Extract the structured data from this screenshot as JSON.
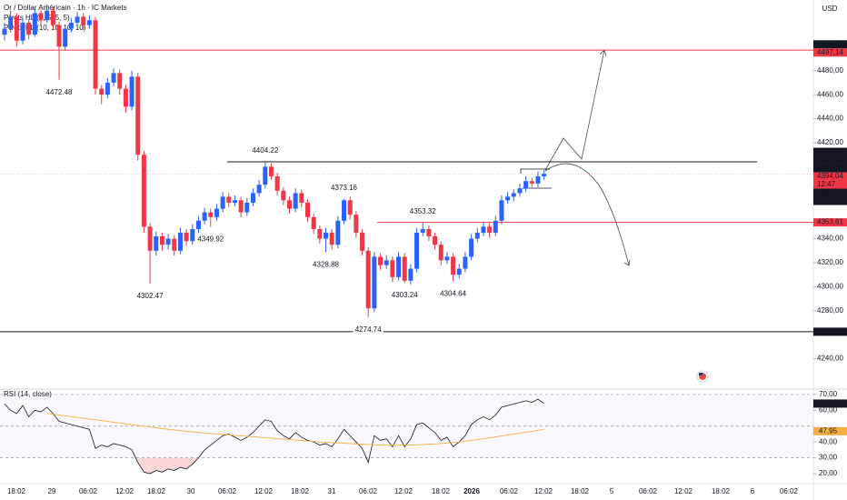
{
  "chart_data": [
    {
      "type": "candlestick",
      "title": "Or / Dollar Américain · 1h · IC Markets",
      "indicator_labels": [
        "Pivots HL (5, 5, 5, 5)",
        "Pivots HL (10, 10, 10, 10)"
      ],
      "currency": "USD",
      "colors": {
        "up": "#2962ff",
        "down": "#f23645"
      },
      "ylim": [
        4214.7,
        4538.9
      ],
      "yticks": [
        {
          "value": 4240,
          "label": "4240,00"
        },
        {
          "value": 4280,
          "label": "4280,00"
        },
        {
          "value": 4300,
          "label": "4300,00"
        },
        {
          "value": 4320,
          "label": "4320,00"
        },
        {
          "value": 4340,
          "label": "4340,00"
        },
        {
          "value": 4420,
          "label": "4420,00"
        },
        {
          "value": 4440,
          "label": "4440,00"
        },
        {
          "value": 4460,
          "label": "4460,00"
        },
        {
          "value": 4480,
          "label": "4480,00"
        }
      ],
      "categories": [
        "18:02",
        "29",
        "06:02",
        "12:02",
        "18:02",
        "30",
        "06:02",
        "12:02",
        "18:02",
        "31",
        "06:02",
        "12:02",
        "18:02",
        "2026",
        "06:02",
        "12:02",
        "18:02",
        "5",
        "06:02",
        "12:02",
        "18:02",
        "6",
        "06:02"
      ],
      "candles": [
        [
          4510,
          4520,
          4505,
          4515
        ],
        [
          4515,
          4530,
          4512,
          4525
        ],
        [
          4525,
          4528,
          4500,
          4505
        ],
        [
          4505,
          4524,
          4502,
          4520
        ],
        [
          4520,
          4523,
          4506,
          4510
        ],
        [
          4510,
          4532,
          4508,
          4528
        ],
        [
          4528,
          4531,
          4518,
          4522
        ],
        [
          4522,
          4535,
          4520,
          4530
        ],
        [
          4530,
          4533,
          4514,
          4518
        ],
        [
          4518,
          4521,
          4472.48,
          4500
        ],
        [
          4500,
          4518,
          4497,
          4515
        ],
        [
          4515,
          4524,
          4512,
          4520
        ],
        [
          4520,
          4529,
          4517,
          4525
        ],
        [
          4525,
          4528,
          4514,
          4518
        ],
        [
          4518,
          4526,
          4515,
          4522
        ],
        [
          4522,
          4525,
          4460,
          4465
        ],
        [
          4465,
          4468,
          4452,
          4460
        ],
        [
          4460,
          4474,
          4457,
          4470
        ],
        [
          4470,
          4482,
          4467,
          4478
        ],
        [
          4478,
          4481,
          4460,
          4465
        ],
        [
          4465,
          4468,
          4445,
          4450
        ],
        [
          4450,
          4480,
          4447,
          4475
        ],
        [
          4475,
          4478,
          4405,
          4410
        ],
        [
          4410,
          4413,
          4345,
          4350
        ],
        [
          4350,
          4353,
          4302.47,
          4330
        ],
        [
          4330,
          4346,
          4326,
          4342
        ],
        [
          4342,
          4345,
          4330,
          4335
        ],
        [
          4335,
          4344,
          4331,
          4340
        ],
        [
          4340,
          4343,
          4326,
          4330
        ],
        [
          4330,
          4349,
          4327,
          4345
        ],
        [
          4345,
          4348,
          4334,
          4338
        ],
        [
          4338,
          4352,
          4335,
          4348
        ],
        [
          4348,
          4359,
          4345,
          4355
        ],
        [
          4355,
          4366,
          4352,
          4362
        ],
        [
          4362,
          4365,
          4349.92,
          4358
        ],
        [
          4358,
          4369,
          4355,
          4365
        ],
        [
          4365,
          4379,
          4362,
          4375
        ],
        [
          4375,
          4378,
          4366,
          4370
        ],
        [
          4370,
          4376,
          4367,
          4372
        ],
        [
          4372,
          4375,
          4358,
          4362
        ],
        [
          4362,
          4374,
          4359,
          4370
        ],
        [
          4370,
          4382,
          4367,
          4378
        ],
        [
          4378,
          4389,
          4375,
          4385
        ],
        [
          4385,
          4404.22,
          4382,
          4400
        ],
        [
          4400,
          4403,
          4389,
          4392
        ],
        [
          4392,
          4395,
          4376,
          4380
        ],
        [
          4380,
          4383,
          4368,
          4372
        ],
        [
          4372,
          4375,
          4361,
          4365
        ],
        [
          4365,
          4382,
          4362,
          4378
        ],
        [
          4378,
          4381,
          4366,
          4370
        ],
        [
          4370,
          4373,
          4354,
          4358
        ],
        [
          4358,
          4361,
          4344,
          4348
        ],
        [
          4348,
          4351,
          4336,
          4340
        ],
        [
          4340,
          4349,
          4328.88,
          4345
        ],
        [
          4345,
          4348,
          4331,
          4335
        ],
        [
          4335,
          4359,
          4332,
          4355
        ],
        [
          4355,
          4373.16,
          4352,
          4372
        ],
        [
          4372,
          4375,
          4356,
          4360
        ],
        [
          4360,
          4363,
          4341,
          4345
        ],
        [
          4345,
          4348,
          4326,
          4330
        ],
        [
          4330,
          4333,
          4274.74,
          4282
        ],
        [
          4282,
          4329,
          4279,
          4325
        ],
        [
          4325,
          4328,
          4314,
          4318
        ],
        [
          4318,
          4326,
          4315,
          4322
        ],
        [
          4322,
          4325,
          4304,
          4308
        ],
        [
          4308,
          4329,
          4305,
          4325
        ],
        [
          4325,
          4328,
          4303.24,
          4305
        ],
        [
          4305,
          4319,
          4302,
          4315
        ],
        [
          4315,
          4349,
          4312,
          4345
        ],
        [
          4345,
          4353.32,
          4342,
          4348
        ],
        [
          4348,
          4351,
          4338,
          4342
        ],
        [
          4342,
          4345,
          4331,
          4335
        ],
        [
          4335,
          4338,
          4318,
          4322
        ],
        [
          4322,
          4329,
          4319,
          4325
        ],
        [
          4325,
          4328,
          4304.64,
          4310
        ],
        [
          4310,
          4319,
          4307,
          4315
        ],
        [
          4315,
          4329,
          4312,
          4325
        ],
        [
          4325,
          4344,
          4322,
          4340
        ],
        [
          4340,
          4349,
          4337,
          4345
        ],
        [
          4345,
          4354,
          4342,
          4350
        ],
        [
          4350,
          4353,
          4341,
          4345
        ],
        [
          4345,
          4359,
          4342,
          4355
        ],
        [
          4355,
          4376,
          4352,
          4372
        ],
        [
          4372,
          4379,
          4369,
          4375
        ],
        [
          4375,
          4381,
          4371,
          4378
        ],
        [
          4378,
          4386,
          4375,
          4382
        ],
        [
          4382,
          4392,
          4379,
          4388
        ],
        [
          4388,
          4391,
          4383,
          4386
        ],
        [
          4386,
          4396,
          4383,
          4392
        ],
        [
          4392,
          4397.39,
          4389,
          4394.04
        ]
      ],
      "pivot_labels": [
        4472.48,
        4404.22,
        4302.47,
        4349.92,
        4373.16,
        4328.88,
        4353.32,
        4274.74,
        4303.24,
        4304.64
      ],
      "price_levels": [
        {
          "value": 4499.97,
          "label": "4499,97",
          "color": "#131722",
          "line": false
        },
        {
          "value": 4497.14,
          "label": "4497,14",
          "color": "#f23645",
          "line": true,
          "line_style": "solid"
        },
        {
          "value": 4404.11,
          "label": "4404,11",
          "color": "#131722",
          "line": true,
          "line_style": "solid"
        },
        {
          "value": 4397.46,
          "label": "4397,46",
          "color": "#131722",
          "line": false
        },
        {
          "value": 4397.39,
          "label": "4397,39",
          "color": "#131722",
          "line": false
        },
        {
          "value": 4394.04,
          "label": "4394,04",
          "color": "#f23645",
          "line": true,
          "line_style": "dotted"
        },
        {
          "value": 4381.67,
          "label": "4381,67",
          "color": "#131722",
          "line": false
        },
        {
          "value": 4381.64,
          "label": "4381,64",
          "color": "#131722",
          "line": false
        },
        {
          "value": 4353.61,
          "label": "4353,61",
          "color": "#f23645",
          "line": true,
          "line_style": "solid"
        },
        {
          "value": 4262.51,
          "label": "4262,51",
          "color": "#131722",
          "line": true,
          "line_style": "solid"
        }
      ],
      "countdown": "12:47"
    },
    {
      "type": "line",
      "title": "RSI (14, close)",
      "ylim": [
        13.7,
        73.4
      ],
      "yticks": [
        {
          "value": 20,
          "label": "20,00"
        },
        {
          "value": 30,
          "label": "30,00"
        },
        {
          "value": 40,
          "label": "40,00"
        },
        {
          "value": 60,
          "label": "60,00"
        },
        {
          "value": 70,
          "label": "70,00"
        }
      ],
      "levels": [
        70,
        50,
        30
      ],
      "oversold_fill": "#f2364533",
      "series": [
        {
          "color": "#131722",
          "last_label": "64,25",
          "values": [
            64,
            60,
            58,
            63,
            56,
            60,
            59,
            62,
            58,
            53,
            52,
            51,
            50,
            49,
            48,
            36,
            38,
            37,
            39,
            38,
            37,
            35,
            27,
            21,
            20,
            22,
            21,
            23,
            22,
            24,
            23,
            26,
            30,
            35,
            38,
            41,
            44,
            45,
            43,
            41,
            43,
            46,
            50,
            54,
            53,
            47,
            44,
            42,
            46,
            43,
            41,
            40,
            38,
            39,
            37,
            42,
            48,
            44,
            40,
            36,
            27,
            44,
            41,
            42,
            37,
            44,
            37,
            42,
            51,
            52,
            49,
            46,
            41,
            43,
            37,
            40,
            44,
            51,
            54,
            56,
            54,
            57,
            62,
            63,
            64,
            65,
            66,
            65,
            67,
            64.25
          ]
        },
        {
          "color": "#f5b041",
          "last_label": "47,95",
          "values": [
            null,
            null,
            null,
            null,
            null,
            null,
            null,
            58,
            57.5,
            57,
            56.5,
            56,
            55.5,
            55,
            54.5,
            54,
            53.5,
            53,
            52.5,
            52,
            51.5,
            51,
            50.5,
            50,
            49.5,
            49,
            48.5,
            48,
            47.6,
            47.2,
            46.8,
            46.4,
            46,
            45.7,
            45.4,
            45.1,
            44.8,
            44.5,
            44.2,
            43.9,
            43.6,
            43.3,
            43,
            42.7,
            42.4,
            42.1,
            41.8,
            41.5,
            41.2,
            40.9,
            40.6,
            40.3,
            40,
            39.8,
            39.6,
            39.4,
            39.2,
            39,
            38.8,
            38.6,
            38.4,
            38.2,
            38.1,
            38,
            38,
            38,
            38,
            38.1,
            38.2,
            38.4,
            38.6,
            38.8,
            39,
            39.3,
            39.6,
            40,
            40.5,
            41,
            41.5,
            42,
            42.6,
            43.2,
            43.8,
            44.4,
            45,
            45.6,
            46.2,
            46.8,
            47.4,
            47.95
          ]
        }
      ]
    }
  ]
}
